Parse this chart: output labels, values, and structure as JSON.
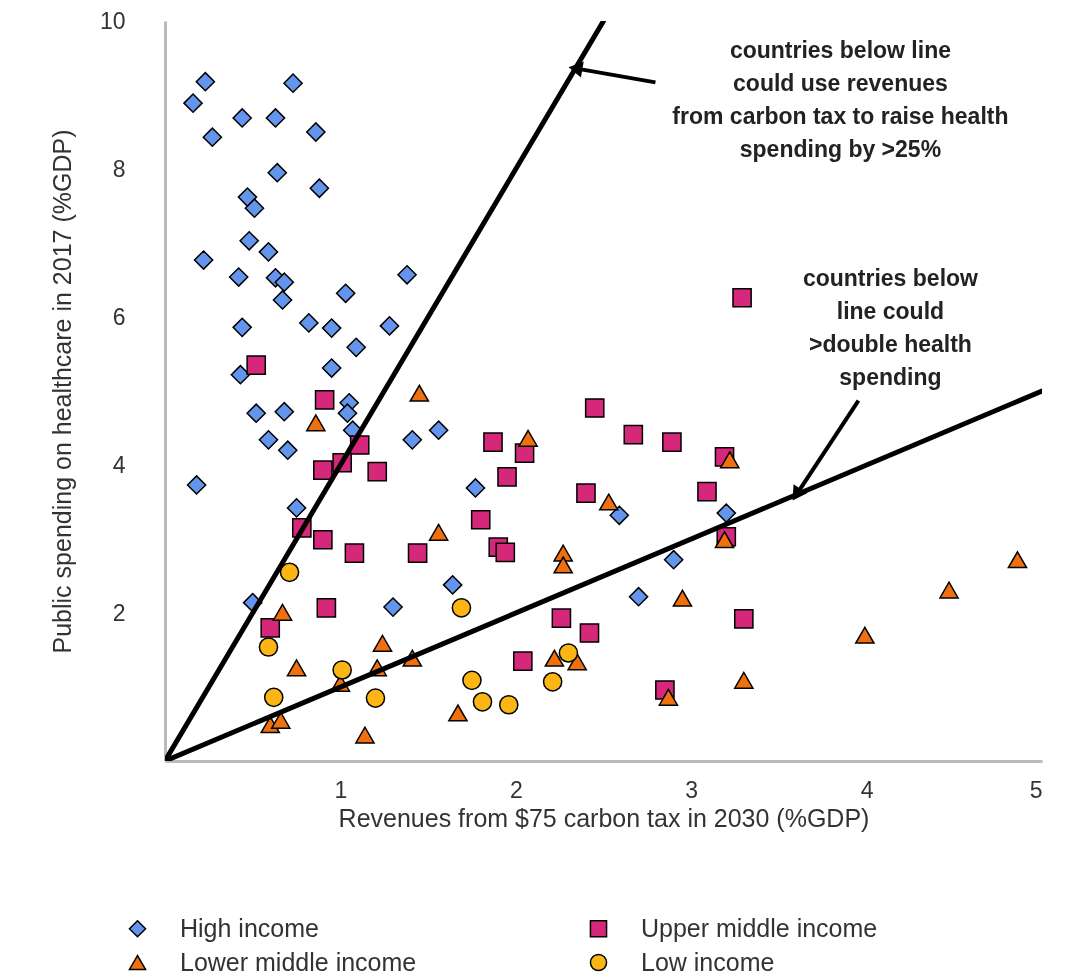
{
  "chart_data": {
    "type": "scatter",
    "xlabel": "Revenues from $75 carbon tax in 2030 (%GDP)",
    "ylabel": "Public spending  on healthcare in 2017 (%GDP)",
    "xlim": [
      0,
      5
    ],
    "ylim": [
      0,
      10
    ],
    "xticks": [
      1,
      2,
      3,
      4,
      5
    ],
    "yticks": [
      2,
      4,
      6,
      8,
      10
    ],
    "grid": false,
    "legend": "bottom",
    "series": [
      {
        "name": "High income",
        "color": "#6495ed",
        "marker": "diamond",
        "x": [
          0.23,
          0.16,
          0.27,
          0.44,
          0.63,
          0.73,
          0.86,
          0.64,
          0.88,
          0.47,
          0.51,
          0.48,
          0.59,
          0.22,
          0.42,
          0.63,
          0.68,
          0.67,
          1.38,
          1.03,
          0.44,
          0.82,
          0.95,
          1.28,
          1.09,
          0.95,
          0.43,
          0.52,
          0.68,
          1.05,
          1.04,
          1.07,
          0.59,
          0.7,
          1.41,
          1.56,
          0.18,
          0.75,
          0.5,
          1.3,
          1.64,
          1.77,
          2.59,
          3.2,
          2.9,
          2.7
        ],
        "values": [
          9.18,
          8.89,
          8.43,
          8.69,
          8.69,
          9.16,
          8.5,
          7.95,
          7.74,
          7.62,
          7.47,
          7.03,
          6.88,
          6.77,
          6.54,
          6.53,
          6.47,
          6.23,
          6.57,
          6.32,
          5.86,
          5.92,
          5.85,
          5.88,
          5.59,
          5.31,
          5.22,
          4.7,
          4.72,
          4.84,
          4.7,
          4.47,
          4.34,
          4.2,
          4.34,
          4.47,
          3.73,
          3.42,
          2.14,
          2.08,
          2.38,
          3.69,
          3.32,
          3.35,
          2.72,
          2.22
        ]
      },
      {
        "name": "Upper middle income",
        "color": "#d6287a",
        "marker": "square",
        "x": [
          0.52,
          0.91,
          1.11,
          1.01,
          0.9,
          1.21,
          0.78,
          0.9,
          1.08,
          1.44,
          0.92,
          0.6,
          2.45,
          1.87,
          2.05,
          1.95,
          2.67,
          2.89,
          3.19,
          2.4,
          3.09,
          1.8,
          1.9,
          1.94,
          3.2,
          2.26,
          2.42,
          2.04,
          2.85,
          3.3,
          3.29
        ],
        "values": [
          5.35,
          4.88,
          4.27,
          4.03,
          3.93,
          3.91,
          3.15,
          2.99,
          2.81,
          2.81,
          2.07,
          1.8,
          4.77,
          4.31,
          4.16,
          3.84,
          4.41,
          4.31,
          4.11,
          3.62,
          3.64,
          3.26,
          2.89,
          2.82,
          3.03,
          1.93,
          1.73,
          1.35,
          0.96,
          1.92,
          6.26
        ]
      },
      {
        "name": "Lower middle income",
        "color": "#f07010",
        "marker": "triangle",
        "x": [
          1.45,
          0.86,
          1.56,
          0.67,
          1.24,
          0.75,
          1.41,
          1.21,
          1.0,
          0.6,
          0.66,
          1.14,
          2.07,
          2.53,
          2.27,
          2.27,
          3.22,
          3.19,
          2.95,
          2.22,
          2.35,
          1.67,
          2.87,
          3.3,
          4.86,
          4.47,
          3.99
        ],
        "values": [
          4.97,
          4.57,
          3.09,
          2.01,
          1.59,
          1.26,
          1.39,
          1.26,
          1.05,
          0.49,
          0.55,
          0.35,
          4.36,
          3.5,
          2.81,
          2.65,
          4.07,
          2.99,
          2.2,
          1.39,
          1.34,
          0.65,
          0.86,
          1.09,
          2.72,
          2.31,
          1.7
        ]
      },
      {
        "name": "Low income",
        "color": "#fbb514",
        "marker": "circle",
        "x": [
          0.71,
          0.59,
          1.01,
          0.62,
          1.2,
          1.69,
          2.3,
          2.21,
          1.75,
          1.81,
          1.96
        ],
        "values": [
          2.55,
          1.54,
          1.23,
          0.86,
          0.85,
          2.07,
          1.46,
          1.07,
          1.09,
          0.8,
          0.76
        ]
      },
      {
        "type": "line",
        "color": "#000000",
        "marker": "none",
        "line_style": "solid",
        "x": [
          0,
          2.5
        ],
        "values": [
          0,
          10
        ]
      },
      {
        "type": "line",
        "color": "#000000",
        "marker": "none",
        "line_style": "solid",
        "x": [
          0,
          5
        ],
        "values": [
          0,
          5
        ]
      }
    ],
    "annotations": [
      {
        "text": "countries below line could use revenues from carbon tax to raise health spending by >25%",
        "x": 2.34,
        "y": 9.36
      },
      {
        "text": "countries below line could >double health spending",
        "x": 3.6,
        "y": 3.6
      }
    ]
  }
}
